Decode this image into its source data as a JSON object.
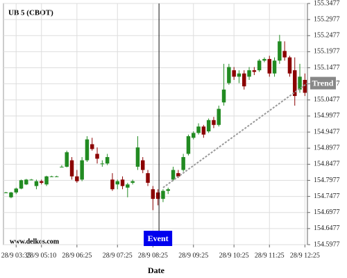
{
  "chart_data": {
    "type": "candlestick",
    "title": "UB 5 (CBOT)",
    "watermark": "www.delkos.com",
    "x_label": "Date",
    "up_color": "#228b22",
    "down_color": "#8b0000",
    "grid": true,
    "ylim": [
      154.5977,
      155.3477
    ],
    "yticks": [
      155.3477,
      155.2977,
      155.2477,
      155.1977,
      155.1477,
      155.0977,
      155.0477,
      154.9977,
      154.9477,
      154.8977,
      154.8477,
      154.7977,
      154.7477,
      154.6977,
      154.6477,
      154.5977
    ],
    "xlim": [
      0,
      60
    ],
    "xticks": [
      {
        "value": 2,
        "label": "28/9 03:35"
      },
      {
        "value": 7,
        "label": "28/9 05:10"
      },
      {
        "value": 14,
        "label": "28/9 06:25"
      },
      {
        "value": 22,
        "label": "28/9 07:25"
      },
      {
        "value": 29,
        "label": "28/9 08:25"
      },
      {
        "value": 37,
        "label": "28/9 09:25"
      },
      {
        "value": 45,
        "label": "28/9 10:25"
      },
      {
        "value": 52,
        "label": "28/9 11:25"
      },
      {
        "value": 59,
        "label": "28/9 12:25"
      }
    ],
    "open": [
      154.76,
      154.745,
      154.76,
      154.772,
      154.785,
      154.8,
      154.78,
      154.795,
      154.785,
      154.81,
      154.81,
      154.84,
      154.84,
      154.86,
      154.81,
      154.8,
      154.86,
      154.91,
      154.88,
      154.85,
      154.85,
      154.8,
      154.785,
      154.8,
      154.775,
      154.79,
      154.84,
      154.86,
      154.82,
      154.77,
      154.76,
      154.74,
      154.765,
      154.8,
      154.82,
      154.83,
      154.88,
      154.93,
      154.945,
      154.965,
      154.95,
      154.985,
      154.97,
      155.04,
      155.1,
      155.14,
      155.12,
      155.13,
      155.12,
      155.14,
      155.14,
      155.17,
      155.175,
      155.13,
      155.17,
      155.2,
      155.18,
      155.14,
      155.08,
      155.11
    ],
    "high": [
      154.762,
      154.762,
      154.775,
      154.8,
      154.802,
      154.802,
      154.8,
      154.8,
      154.812,
      154.812,
      154.812,
      154.845,
      154.89,
      154.87,
      154.83,
      154.87,
      154.935,
      154.93,
      154.9,
      154.86,
      154.88,
      154.82,
      154.8,
      154.81,
      154.79,
      154.8,
      154.935,
      154.87,
      154.83,
      154.78,
      154.77,
      154.77,
      154.775,
      154.84,
      154.83,
      154.88,
      154.94,
      154.95,
      154.975,
      154.97,
      154.99,
      154.995,
      155.03,
      155.16,
      155.16,
      155.15,
      155.14,
      155.14,
      155.15,
      155.15,
      155.175,
      155.18,
      155.185,
      155.18,
      155.25,
      155.23,
      155.185,
      155.18,
      155.16,
      155.13
    ],
    "low": [
      154.758,
      154.742,
      154.755,
      154.77,
      154.783,
      154.798,
      154.77,
      154.785,
      154.78,
      154.808,
      154.808,
      154.838,
      154.838,
      154.8,
      154.79,
      154.795,
      154.855,
      154.89,
      154.85,
      154.84,
      154.845,
      154.765,
      154.77,
      154.77,
      154.745,
      154.785,
      154.83,
      154.82,
      154.78,
      154.705,
      154.72,
      154.73,
      154.755,
      154.795,
      154.805,
      154.825,
      154.875,
      154.925,
      154.94,
      154.93,
      154.945,
      154.96,
      154.965,
      155.03,
      155.095,
      155.11,
      155.1,
      155.08,
      155.11,
      155.125,
      155.135,
      155.165,
      155.12,
      155.12,
      155.16,
      155.17,
      155.12,
      155.03,
      155.07,
      155.06
    ],
    "close": [
      154.76,
      154.76,
      154.772,
      154.798,
      154.8,
      154.8,
      154.795,
      154.79,
      154.81,
      154.81,
      154.81,
      154.84,
      154.885,
      154.81,
      154.795,
      154.86,
      154.925,
      154.895,
      154.865,
      154.85,
      154.87,
      154.77,
      154.795,
      154.78,
      154.785,
      154.795,
      154.9,
      154.83,
      154.79,
      154.74,
      154.74,
      154.765,
      154.77,
      154.83,
      154.81,
      154.87,
      154.935,
      154.945,
      154.965,
      154.94,
      154.985,
      154.97,
      155.02,
      155.08,
      155.15,
      155.12,
      155.13,
      155.09,
      155.14,
      155.135,
      155.17,
      155.175,
      155.13,
      155.17,
      155.23,
      155.18,
      155.13,
      155.06,
      155.12,
      155.07
    ],
    "event": {
      "label": "Event",
      "x": 30.2
    },
    "trend": {
      "label": "Trend",
      "x": [
        31,
        59.5
      ],
      "y": [
        154.775,
        155.1
      ]
    }
  }
}
